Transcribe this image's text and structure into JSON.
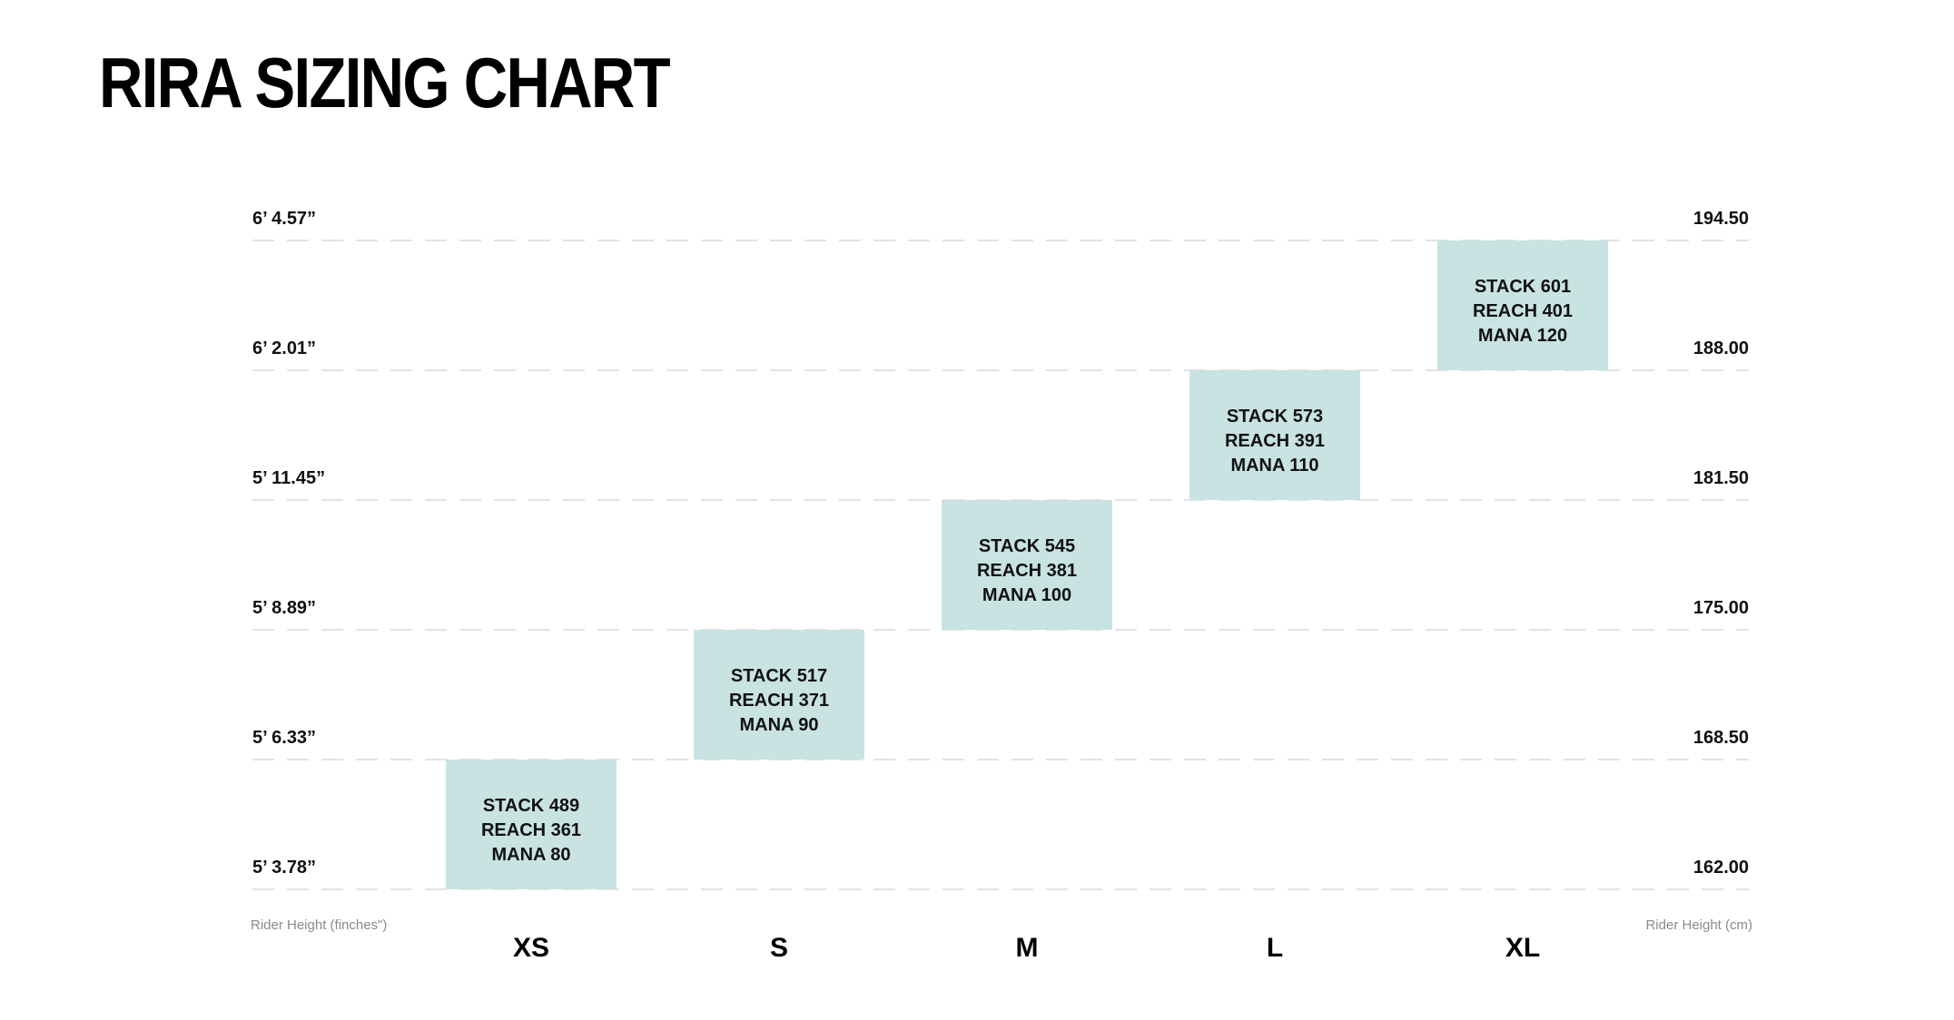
{
  "title": "RIRA SIZING CHART",
  "colors": {
    "box": "#c8e3e1",
    "grid": "#e3e3e3",
    "text": "#111111",
    "axis_title": "#8a8a8a"
  },
  "chart_data": {
    "type": "bar",
    "title": "RIRA SIZING CHART",
    "categories": [
      "XS",
      "S",
      "M",
      "L",
      "XL"
    ],
    "left_axis": {
      "label": "Rider Height (finches\")",
      "ticks": [
        "5’ 3.78”",
        "5’ 6.33”",
        "5’ 8.89”",
        "5’ 11.45”",
        "6’ 2.01”",
        "6’ 4.57”"
      ]
    },
    "right_axis": {
      "label": "Rider Height (cm)",
      "ticks": [
        "162.00",
        "168.50",
        "175.00",
        "181.50",
        "188.00",
        "194.50"
      ],
      "range": [
        162.0,
        194.5
      ]
    },
    "grid": true,
    "series": [
      {
        "bars": [
          {
            "size": "XS",
            "height_from_cm": 162.0,
            "height_to_cm": 168.5,
            "lines": [
              "STACK 489",
              "REACH 361",
              "MANA 80"
            ]
          },
          {
            "size": "S",
            "height_from_cm": 168.5,
            "height_to_cm": 175.0,
            "lines": [
              "STACK 517",
              "REACH 371",
              "MANA 90"
            ]
          },
          {
            "size": "M",
            "height_from_cm": 175.0,
            "height_to_cm": 181.5,
            "lines": [
              "STACK 545",
              "REACH 381",
              "MANA 100"
            ]
          },
          {
            "size": "L",
            "height_from_cm": 181.5,
            "height_to_cm": 188.0,
            "lines": [
              "STACK 573",
              "REACH 391",
              "MANA 110"
            ]
          },
          {
            "size": "XL",
            "height_from_cm": 188.0,
            "height_to_cm": 194.5,
            "lines": [
              "STACK 601",
              "REACH 401",
              "MANA 120"
            ]
          }
        ]
      }
    ]
  }
}
